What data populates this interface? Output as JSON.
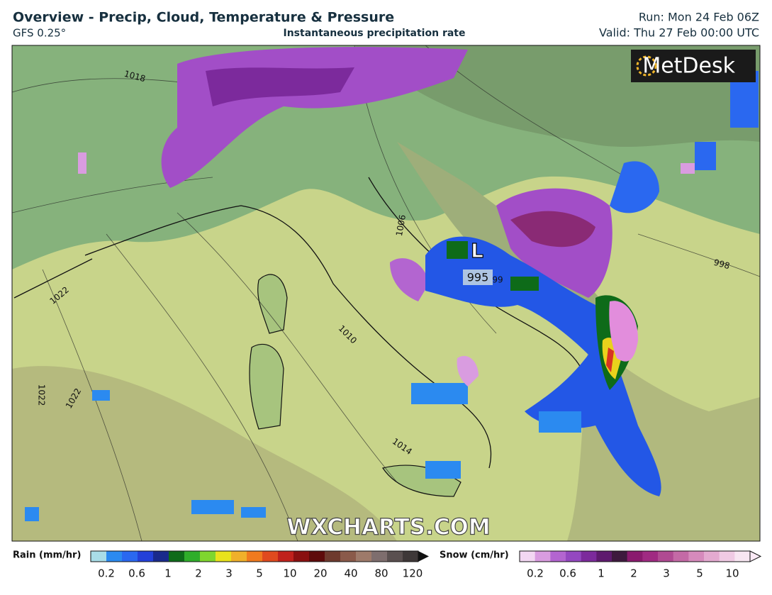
{
  "header": {
    "title": "Overview - Precip, Cloud, Temperature & Pressure",
    "model": "GFS 0.25°",
    "subtitle": "Instantaneous precipitation rate",
    "run": "Run: Mon 24 Feb 06Z",
    "valid": "Valid: Thu 27 Feb 00:00 UTC"
  },
  "map": {
    "logo": "MetDesk",
    "watermark": "WXCHARTS.COM",
    "low": {
      "symbol": "L",
      "pressure": "995"
    },
    "isobar_labels": [
      "1018",
      "1006",
      "1022",
      "1010",
      "1014",
      "998",
      "1022",
      "1022",
      "99"
    ]
  },
  "legend": {
    "rain": {
      "title": "Rain (mm/hr)",
      "ticks": [
        "0.2",
        "0.6",
        "1",
        "2",
        "3",
        "5",
        "10",
        "20",
        "40",
        "80",
        "120"
      ]
    },
    "snow": {
      "title": "Snow (cm/hr)",
      "ticks": [
        "0.2",
        "0.6",
        "1",
        "2",
        "3",
        "5",
        "10"
      ]
    }
  }
}
